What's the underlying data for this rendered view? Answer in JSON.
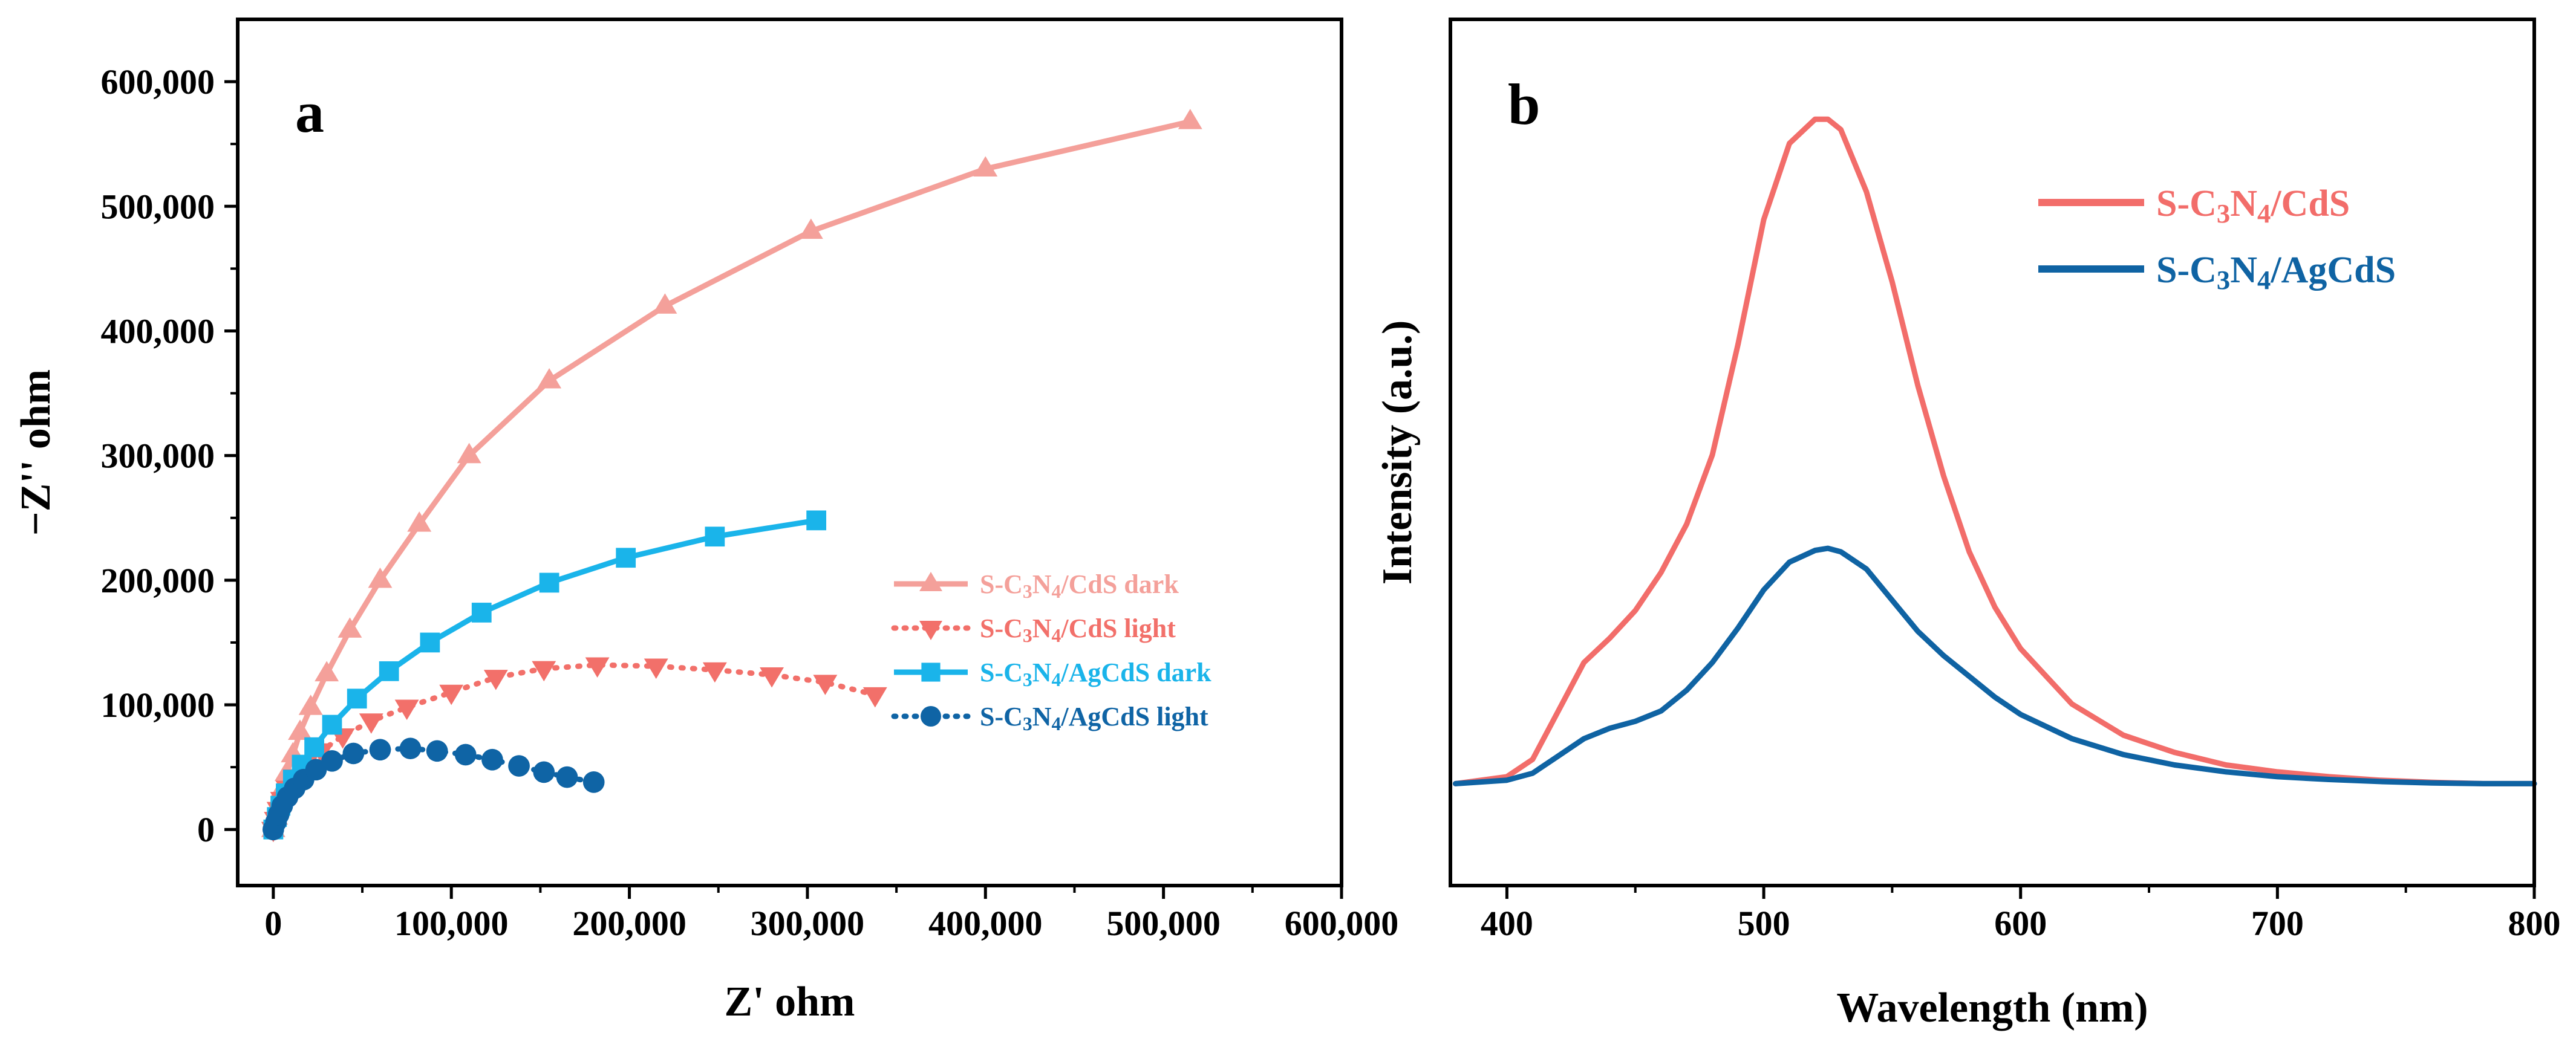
{
  "chart_data": [
    {
      "type": "scatter",
      "panel_label": "a",
      "xlabel": "Z' ohm",
      "ylabel": "−Z'' ohm",
      "xlim": [
        -20000,
        600000
      ],
      "ylim": [
        -45000,
        650000
      ],
      "x_ticks": [
        "0",
        "100,000",
        "200,000",
        "300,000",
        "400,000",
        "500,000",
        "600,000"
      ],
      "x_tick_values": [
        0,
        100000,
        200000,
        300000,
        400000,
        500000,
        600000
      ],
      "y_ticks": [
        "0",
        "100,000",
        "200,000",
        "300,000",
        "400,000",
        "500,000",
        "600,000"
      ],
      "y_tick_values": [
        0,
        100000,
        200000,
        300000,
        400000,
        500000,
        600000
      ],
      "legend_position": "middle-right",
      "series": [
        {
          "name": "S-C3N4/CdS  dark",
          "name_parts": {
            "pre": "S-C",
            "sub1": "3",
            "mid": "N",
            "sub2": "4",
            "post": "/CdS  dark"
          },
          "color": "#F4A09A",
          "marker": "triangle-up",
          "line": "solid",
          "x": [
            0,
            1500,
            3000,
            5000,
            7500,
            11000,
            15000,
            21000,
            30000,
            43000,
            60000,
            82000,
            110000,
            155000,
            220000,
            302000,
            400000,
            515000
          ],
          "y": [
            0,
            10000,
            20000,
            32000,
            45000,
            60000,
            78000,
            98000,
            125000,
            160000,
            200000,
            245000,
            300000,
            360000,
            420000,
            480000,
            530000,
            568000
          ]
        },
        {
          "name": "S-C3N4/CdS  light",
          "name_parts": {
            "pre": "S-C",
            "sub1": "3",
            "mid": "N",
            "sub2": "4",
            "post": "/CdS  light"
          },
          "color": "#F2706A",
          "marker": "triangle-down",
          "line": "dotted",
          "x": [
            0,
            1500,
            3000,
            5000,
            8000,
            12000,
            18000,
            27000,
            39000,
            55000,
            75000,
            100000,
            125000,
            152000,
            182000,
            215000,
            248000,
            280000,
            310000,
            338000
          ],
          "y": [
            0,
            8000,
            16000,
            24000,
            33000,
            42000,
            52000,
            63000,
            75000,
            87000,
            98000,
            110000,
            122000,
            129000,
            132000,
            131000,
            128000,
            124000,
            118000,
            108000
          ]
        },
        {
          "name": "S-C3N4/AgCdS dark",
          "name_parts": {
            "pre": "S-C",
            "sub1": "3",
            "mid": "N",
            "sub2": "4",
            "post": "/AgCdS dark"
          },
          "color": "#1AB4EA",
          "marker": "square",
          "line": "solid",
          "x": [
            0,
            2000,
            4000,
            7000,
            11000,
            16000,
            23000,
            33000,
            47000,
            65000,
            88000,
            117000,
            155000,
            198000,
            248000,
            305000
          ],
          "y": [
            0,
            10000,
            19000,
            29000,
            40000,
            52000,
            66000,
            84000,
            105000,
            127000,
            150000,
            174000,
            198000,
            218000,
            235000,
            248000
          ]
        },
        {
          "name": "S-C3N4/AgCdS light",
          "name_parts": {
            "pre": "S-C",
            "sub1": "3",
            "mid": "N",
            "sub2": "4",
            "post": "/AgCdS light"
          },
          "color": "#0F64A5",
          "marker": "circle",
          "line": "dotted",
          "x": [
            0,
            1500,
            3000,
            5000,
            8000,
            12000,
            17000,
            24000,
            33000,
            45000,
            60000,
            77000,
            92000,
            108000,
            123000,
            138000,
            152000,
            165000,
            180000
          ],
          "y": [
            0,
            6000,
            12000,
            19000,
            26000,
            33000,
            40000,
            48000,
            55000,
            61000,
            64000,
            65000,
            63000,
            60000,
            56000,
            51000,
            46000,
            42000,
            38000
          ]
        }
      ]
    },
    {
      "type": "line",
      "panel_label": "b",
      "xlabel": "Wavelength (nm)",
      "ylabel": "Intensity (a.u.)",
      "xlim": [
        378,
        800
      ],
      "ylim": [
        0,
        1
      ],
      "x_ticks": [
        "400",
        "500",
        "600",
        "700",
        "800"
      ],
      "x_tick_values": [
        400,
        500,
        600,
        700,
        800
      ],
      "legend_position": "top-right",
      "series": [
        {
          "name": "S-C3N4/CdS",
          "name_parts": {
            "pre": "S-C",
            "sub1": "3",
            "mid": "N",
            "sub2": "4",
            "post": "/CdS"
          },
          "color": "#F26D6A",
          "x": [
            380,
            400,
            410,
            420,
            430,
            440,
            450,
            460,
            470,
            480,
            490,
            500,
            510,
            520,
            525,
            530,
            540,
            550,
            560,
            570,
            580,
            590,
            600,
            620,
            640,
            660,
            680,
            700,
            720,
            740,
            760,
            780,
            800
          ],
          "y": [
            0.025,
            0.035,
            0.06,
            0.13,
            0.2,
            0.235,
            0.275,
            0.33,
            0.4,
            0.5,
            0.66,
            0.84,
            0.95,
            0.985,
            0.985,
            0.97,
            0.88,
            0.75,
            0.6,
            0.47,
            0.36,
            0.28,
            0.22,
            0.14,
            0.095,
            0.07,
            0.052,
            0.042,
            0.035,
            0.03,
            0.027,
            0.025,
            0.025
          ]
        },
        {
          "name": "S-C3N4/AgCdS",
          "name_parts": {
            "pre": "S-C",
            "sub1": "3",
            "mid": "N",
            "sub2": "4",
            "post": "/AgCdS"
          },
          "color": "#0F63A3",
          "x": [
            380,
            400,
            410,
            420,
            430,
            440,
            450,
            460,
            470,
            480,
            490,
            500,
            510,
            520,
            525,
            530,
            540,
            550,
            560,
            570,
            580,
            590,
            600,
            620,
            640,
            660,
            680,
            700,
            720,
            740,
            760,
            780,
            800
          ],
          "y": [
            0.025,
            0.03,
            0.04,
            0.065,
            0.09,
            0.105,
            0.115,
            0.13,
            0.16,
            0.2,
            0.25,
            0.305,
            0.345,
            0.362,
            0.365,
            0.36,
            0.335,
            0.29,
            0.245,
            0.21,
            0.18,
            0.15,
            0.125,
            0.09,
            0.067,
            0.052,
            0.042,
            0.035,
            0.031,
            0.028,
            0.026,
            0.025,
            0.025
          ]
        }
      ]
    }
  ]
}
